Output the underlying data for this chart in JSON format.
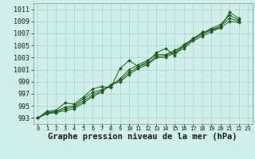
{
  "bg_color": "#cff0ea",
  "grid_color": "#b8cece",
  "line_color": "#1a5e1a",
  "marker_color": "#1a5e1a",
  "xlabel": "Graphe pression niveau de la mer (hPa)",
  "xlabel_fontsize": 7.5,
  "xtick_fontsize": 5.0,
  "ytick_fontsize": 6.0,
  "ylim": [
    992,
    1012
  ],
  "xlim": [
    -0.5,
    23.5
  ],
  "yticks": [
    993,
    995,
    997,
    999,
    1001,
    1003,
    1005,
    1007,
    1009,
    1011
  ],
  "xticks": [
    0,
    1,
    2,
    3,
    4,
    5,
    6,
    7,
    8,
    9,
    10,
    11,
    12,
    13,
    14,
    15,
    16,
    17,
    18,
    19,
    20,
    21,
    22,
    23
  ],
  "series": [
    [
      993.0,
      994.1,
      994.3,
      995.5,
      995.3,
      996.5,
      997.8,
      998.2,
      998.0,
      1001.2,
      1002.5,
      1001.5,
      1002.3,
      1003.8,
      1004.5,
      1003.3,
      1005.2,
      1006.0,
      1007.2,
      1007.5,
      1008.0,
      1010.5,
      1009.5,
      null
    ],
    [
      993.0,
      993.9,
      994.1,
      994.8,
      995.0,
      996.2,
      997.2,
      997.7,
      998.2,
      999.5,
      1001.0,
      1001.8,
      1002.5,
      1003.5,
      1003.5,
      1004.2,
      1005.0,
      1006.2,
      1007.0,
      1007.8,
      1008.5,
      1010.0,
      1009.2,
      null
    ],
    [
      993.0,
      993.8,
      994.0,
      994.5,
      994.8,
      995.8,
      996.8,
      997.5,
      998.5,
      999.3,
      1000.5,
      1001.5,
      1002.0,
      1003.2,
      1003.3,
      1004.0,
      1004.8,
      1006.0,
      1006.8,
      1007.6,
      1008.2,
      1009.5,
      1009.0,
      null
    ],
    [
      993.0,
      993.7,
      993.9,
      994.2,
      994.5,
      995.5,
      996.5,
      997.3,
      998.5,
      999.0,
      1000.2,
      1001.2,
      1001.8,
      1003.0,
      1003.0,
      1003.8,
      1004.5,
      1005.8,
      1006.5,
      1007.3,
      1007.9,
      1009.0,
      1008.8,
      null
    ]
  ]
}
